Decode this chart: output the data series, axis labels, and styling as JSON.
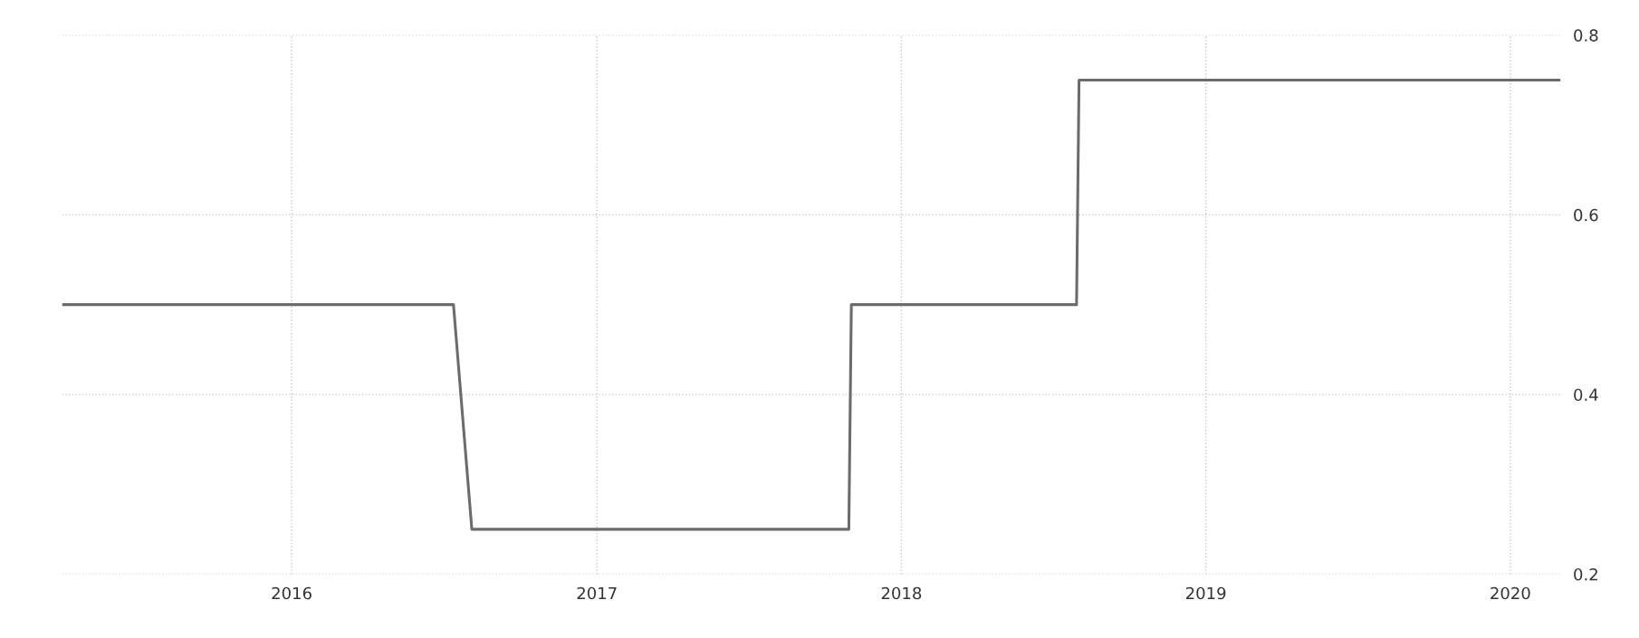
{
  "chart_data": {
    "type": "line",
    "x": [
      "2015-04",
      "2016-07-13",
      "2016-08-04",
      "2017-10-30",
      "2017-11-02",
      "2018-07-30",
      "2018-08-02",
      "2020-03"
    ],
    "series": [
      {
        "color": "#6b6b6b",
        "values": [
          0.5,
          0.5,
          0.25,
          0.25,
          0.5,
          0.5,
          0.75,
          0.75
        ]
      }
    ],
    "xlim": [
      "2015-04",
      "2020-03"
    ],
    "xticks": [
      {
        "value": "2016",
        "label": "2016"
      },
      {
        "value": "2017",
        "label": "2017"
      },
      {
        "value": "2018",
        "label": "2018"
      },
      {
        "value": "2019",
        "label": "2019"
      },
      {
        "value": "2020",
        "label": "2020"
      }
    ],
    "ylim": [
      0.2,
      0.8
    ],
    "yticks": [
      0.2,
      0.4,
      0.6,
      0.8
    ],
    "grid": true,
    "marker": "none",
    "line_style": "solid"
  }
}
